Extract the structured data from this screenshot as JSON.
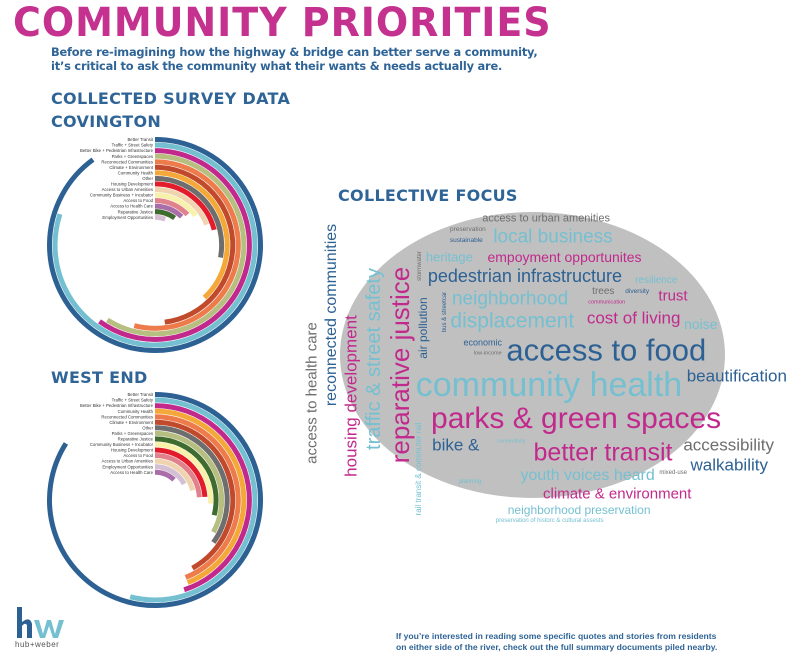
{
  "header": {
    "title": "COMMUNITY PRIORITIES",
    "intro_line1": "Before re-imagining how the highway & bridge can better serve a community,",
    "intro_line2": "it’s critical to ask the community what their wants & needs actually are."
  },
  "sections": {
    "survey_title": "COLLECTED SURVEY DATA",
    "covington_title": "COVINGTON",
    "west_end_title": "WEST END",
    "collective_focus_title": "COLLECTIVE FOCUS"
  },
  "category_colors": {
    "Better Transit": "#2d6193",
    "Traffic + Street Safety": "#74c0d1",
    "Better Bike + Pedestrian Infrastructure": "#c2298c",
    "Parks + Greenspaces": "#b6be80",
    "Reconnected Communities": "#ee7b4b",
    "Climate + Environment": "#c04a2b",
    "Community Health": "#f4a838",
    "Other": "#6e6e6e",
    "Housing Development": "#e31c2c",
    "Access to Urban Amenities": "#efd4af",
    "Community Business + Incubator": "#f7f1aa",
    "Access to Food": "#e0818b",
    "Access to Health Care": "#a96ea9",
    "Reparative Justice": "#3f6b2f",
    "Employment Opportunities": "#d5bfd2"
  },
  "chart_data": [
    {
      "type": "radial-bar",
      "title": "COVINGTON",
      "value_unit": "percent of full circle (estimated)",
      "categories": [
        "Better Transit",
        "Traffic + Street Safety",
        "Better Bike + Pedestrian Infrastructure",
        "Parks + Greenspaces",
        "Reconnected Communities",
        "Climate + Environment",
        "Community Health",
        "Other",
        "Housing Development",
        "Access to Urban Amenities",
        "Community Business + Incubator",
        "Access to Food",
        "Access to Health Care",
        "Reparative Justice",
        "Employment Opportunities"
      ],
      "values": [
        90,
        80,
        60,
        59,
        54,
        48,
        38,
        28,
        21,
        19,
        15,
        13,
        12,
        10,
        6
      ]
    },
    {
      "type": "radial-bar",
      "title": "WEST END",
      "value_unit": "percent of full circle (estimated)",
      "categories": [
        "Better Transit",
        "Traffic + Street Safety",
        "Better Bike + Pedestrian Infrastructure",
        "Community Health",
        "Reconnected Communities",
        "Climate + Environment",
        "Other",
        "Parks + Greenspaces",
        "Reparative Justice",
        "Community Business + Incubator",
        "Housing Development",
        "Access to Food",
        "Access to Urban Amenities",
        "Employment Opportunities",
        "Access to Health Care"
      ],
      "values": [
        84,
        54,
        45,
        44,
        44,
        42,
        35,
        33,
        29,
        26,
        24,
        24,
        21,
        17,
        12
      ]
    }
  ],
  "word_cloud": {
    "colors": {
      "magenta": "#c2298c",
      "light": "#74c0d1",
      "dark": "#2d6193",
      "gray": "#6e6e6e"
    },
    "words": [
      {
        "text": "local business",
        "color": "light"
      },
      {
        "text": "access to urban amenities",
        "color": "gray"
      },
      {
        "text": "empoyment opportunites",
        "color": "magenta"
      },
      {
        "text": "sustainable",
        "color": "dark"
      },
      {
        "text": "preservation",
        "color": "gray"
      },
      {
        "text": "trees",
        "color": "gray"
      },
      {
        "text": "diversity",
        "color": "dark"
      },
      {
        "text": "heritage",
        "color": "light"
      },
      {
        "text": "stormwater",
        "color": "gray"
      },
      {
        "text": "bus & streetcar",
        "color": "dark"
      },
      {
        "text": "traffic & street safety",
        "color": "light"
      },
      {
        "text": "rail transit & commuter rail",
        "color": "light"
      },
      {
        "text": "reconnected communities",
        "color": "dark"
      },
      {
        "text": "reparative justice",
        "color": "magenta"
      },
      {
        "text": "housing development",
        "color": "magenta"
      },
      {
        "text": "access to health care",
        "color": "gray"
      },
      {
        "text": "air pollution",
        "color": "dark"
      },
      {
        "text": "bike &",
        "color": "dark"
      },
      {
        "text": "economic",
        "color": "dark"
      },
      {
        "text": "low-income",
        "color": "gray"
      },
      {
        "text": "neighborhood",
        "color": "light"
      },
      {
        "text": "displacement",
        "color": "light"
      },
      {
        "text": "pedestrian infrastructure",
        "color": "dark"
      },
      {
        "text": "community health",
        "color": "light"
      },
      {
        "text": "connectivity",
        "color": "light"
      },
      {
        "text": "communication",
        "color": "magenta"
      },
      {
        "text": "parks & green spaces",
        "color": "magenta"
      },
      {
        "text": "access to food",
        "color": "dark"
      },
      {
        "text": "resilience",
        "color": "light"
      },
      {
        "text": "trust",
        "color": "magenta"
      },
      {
        "text": "noise",
        "color": "light"
      },
      {
        "text": "cost of living",
        "color": "magenta"
      },
      {
        "text": "beautification",
        "color": "dark"
      },
      {
        "text": "accessibility",
        "color": "gray"
      },
      {
        "text": "walkability",
        "color": "dark"
      },
      {
        "text": "climate & environment",
        "color": "magenta"
      },
      {
        "text": "mixed-use",
        "color": "gray"
      },
      {
        "text": "better transit",
        "color": "magenta"
      },
      {
        "text": "youth voices heard",
        "color": "light"
      },
      {
        "text": "planning",
        "color": "light"
      },
      {
        "text": "neighborhood preservation",
        "color": "light"
      },
      {
        "text": "preservation of historc & cultural assests",
        "color": "light"
      }
    ]
  },
  "footer": {
    "line1": "If you’re interested in reading some specific quotes and stories from residents",
    "line2": "on either side of the river, check out the full summary documents piled nearby."
  },
  "logo": {
    "mark": "hw",
    "text": "hub+weber"
  }
}
